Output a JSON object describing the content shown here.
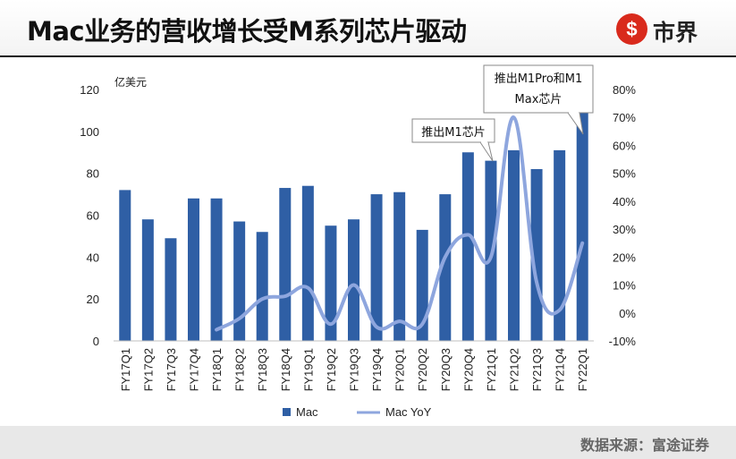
{
  "header": {
    "title": "Mac业务的营收增长受M系列芯片驱动",
    "logo_mark": "$",
    "logo_text": "市界"
  },
  "footer": {
    "source": "数据来源：富途证券"
  },
  "colors": {
    "bar": "#2f5fa5",
    "line": "#8ea6de",
    "logo": "#d92a1c"
  },
  "chart_data": {
    "type": "bar",
    "unit_label": "亿美元",
    "categories": [
      "FY17Q1",
      "FY17Q2",
      "FY17Q3",
      "FY17Q4",
      "FY18Q1",
      "FY18Q2",
      "FY18Q3",
      "FY18Q4",
      "FY19Q1",
      "FY19Q2",
      "FY19Q3",
      "FY19Q4",
      "FY20Q1",
      "FY20Q2",
      "FY20Q3",
      "FY20Q4",
      "FY21Q1",
      "FY21Q2",
      "FY21Q3",
      "FY21Q4",
      "FY22Q1"
    ],
    "series": [
      {
        "name": "Mac",
        "type": "bar",
        "axis": "left",
        "values": [
          72,
          58,
          49,
          68,
          68,
          57,
          52,
          73,
          74,
          55,
          58,
          70,
          71,
          53,
          70,
          90,
          86,
          91,
          82,
          91,
          109
        ]
      },
      {
        "name": "Mac YoY",
        "type": "line",
        "axis": "right",
        "values": [
          null,
          null,
          null,
          null,
          -6,
          -2,
          5,
          6,
          9,
          -4,
          10,
          -5,
          -3,
          -4,
          20,
          28,
          20,
          70,
          11,
          1,
          25
        ]
      }
    ],
    "left_axis": {
      "ylim": [
        0,
        120
      ],
      "ticks": [
        "0",
        "20",
        "40",
        "60",
        "80",
        "100",
        "120"
      ]
    },
    "right_axis": {
      "ylim": [
        -10,
        80
      ],
      "ticks": [
        "-10%",
        "0%",
        "10%",
        "20%",
        "30%",
        "40%",
        "50%",
        "60%",
        "70%",
        "80%"
      ]
    },
    "annotations": [
      {
        "lines": [
          "推出M1芯片"
        ],
        "category": "FY21Q1"
      },
      {
        "lines": [
          "推出M1Pro和M1",
          "Max芯片"
        ],
        "category": "FY22Q1"
      }
    ],
    "legend": {
      "position": "bottom",
      "items": [
        "Mac",
        "Mac YoY"
      ]
    },
    "grid": false
  }
}
